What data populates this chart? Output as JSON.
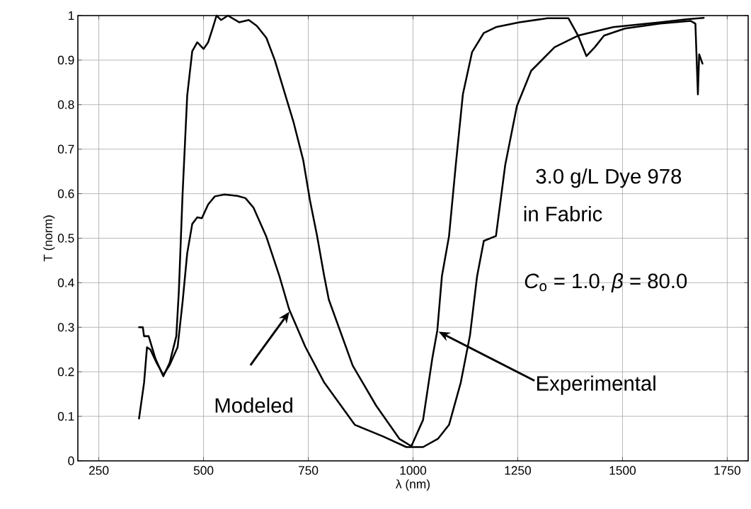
{
  "chart_data": {
    "type": "line",
    "xlabel": "λ (nm)",
    "ylabel": "T (norm)",
    "xlim": [
      200,
      1800
    ],
    "ylim": [
      0,
      1
    ],
    "xticks": [
      250,
      500,
      750,
      1000,
      1250,
      1500,
      1750
    ],
    "yticks": [
      0,
      0.1,
      0.2,
      0.3,
      0.4,
      0.5,
      0.6,
      0.7,
      0.8,
      0.9,
      1
    ],
    "grid": true,
    "line_style": "solid",
    "marker": "none",
    "series": [
      {
        "color": "#000000",
        "x": [
          346,
          355,
          358,
          369,
          385,
          404,
          419,
          435,
          441,
          450,
          461,
          473,
          485,
          500,
          511,
          523,
          531,
          542,
          558,
          585,
          608,
          627,
          650,
          670,
          715,
          738,
          754,
          771,
          788,
          799,
          856,
          912,
          968,
          996,
          1024,
          1046,
          1058,
          1069,
          1086,
          1102,
          1119,
          1141,
          1169,
          1198,
          1254,
          1321,
          1371,
          1394,
          1414,
          1434,
          1456,
          1506,
          1590,
          1663,
          1674,
          1680,
          1683,
          1691
        ],
        "values": [
          0.3,
          0.3,
          0.28,
          0.28,
          0.23,
          0.19,
          0.22,
          0.28,
          0.38,
          0.6,
          0.82,
          0.92,
          0.94,
          0.925,
          0.94,
          0.975,
          1.0,
          0.99,
          1.0,
          0.985,
          0.99,
          0.977,
          0.95,
          0.9,
          0.76,
          0.675,
          0.585,
          0.505,
          0.415,
          0.362,
          0.214,
          0.124,
          0.049,
          0.033,
          0.092,
          0.23,
          0.293,
          0.415,
          0.505,
          0.664,
          0.823,
          0.918,
          0.961,
          0.974,
          0.985,
          0.994,
          0.994,
          0.955,
          0.909,
          0.929,
          0.955,
          0.971,
          0.982,
          0.988,
          0.982,
          0.823,
          0.913,
          0.892
        ]
      },
      {
        "color": "#000000",
        "x": [
          346,
          358,
          365,
          373,
          388,
          404,
          419,
          438,
          450,
          461,
          473,
          485,
          496,
          511,
          527,
          550,
          581,
          600,
          619,
          650,
          681,
          704,
          743,
          788,
          861,
          928,
          984,
          1024,
          1060,
          1086,
          1114,
          1136,
          1153,
          1169,
          1198,
          1220,
          1248,
          1282,
          1338,
          1394,
          1478,
          1590,
          1657,
          1694
        ],
        "values": [
          0.095,
          0.175,
          0.255,
          0.25,
          0.22,
          0.193,
          0.215,
          0.255,
          0.357,
          0.466,
          0.532,
          0.547,
          0.545,
          0.576,
          0.594,
          0.598,
          0.595,
          0.59,
          0.569,
          0.503,
          0.415,
          0.341,
          0.256,
          0.176,
          0.081,
          0.055,
          0.031,
          0.031,
          0.05,
          0.081,
          0.176,
          0.282,
          0.415,
          0.494,
          0.505,
          0.664,
          0.797,
          0.876,
          0.929,
          0.955,
          0.974,
          0.985,
          0.992,
          0.995
        ]
      }
    ],
    "annotations": [
      "Modeled",
      "Experimental",
      "3.0 g/L Dye 978",
      "in Fabric",
      "*C*$_{o}$ = 1.0,  *β* = 80.0"
    ]
  }
}
